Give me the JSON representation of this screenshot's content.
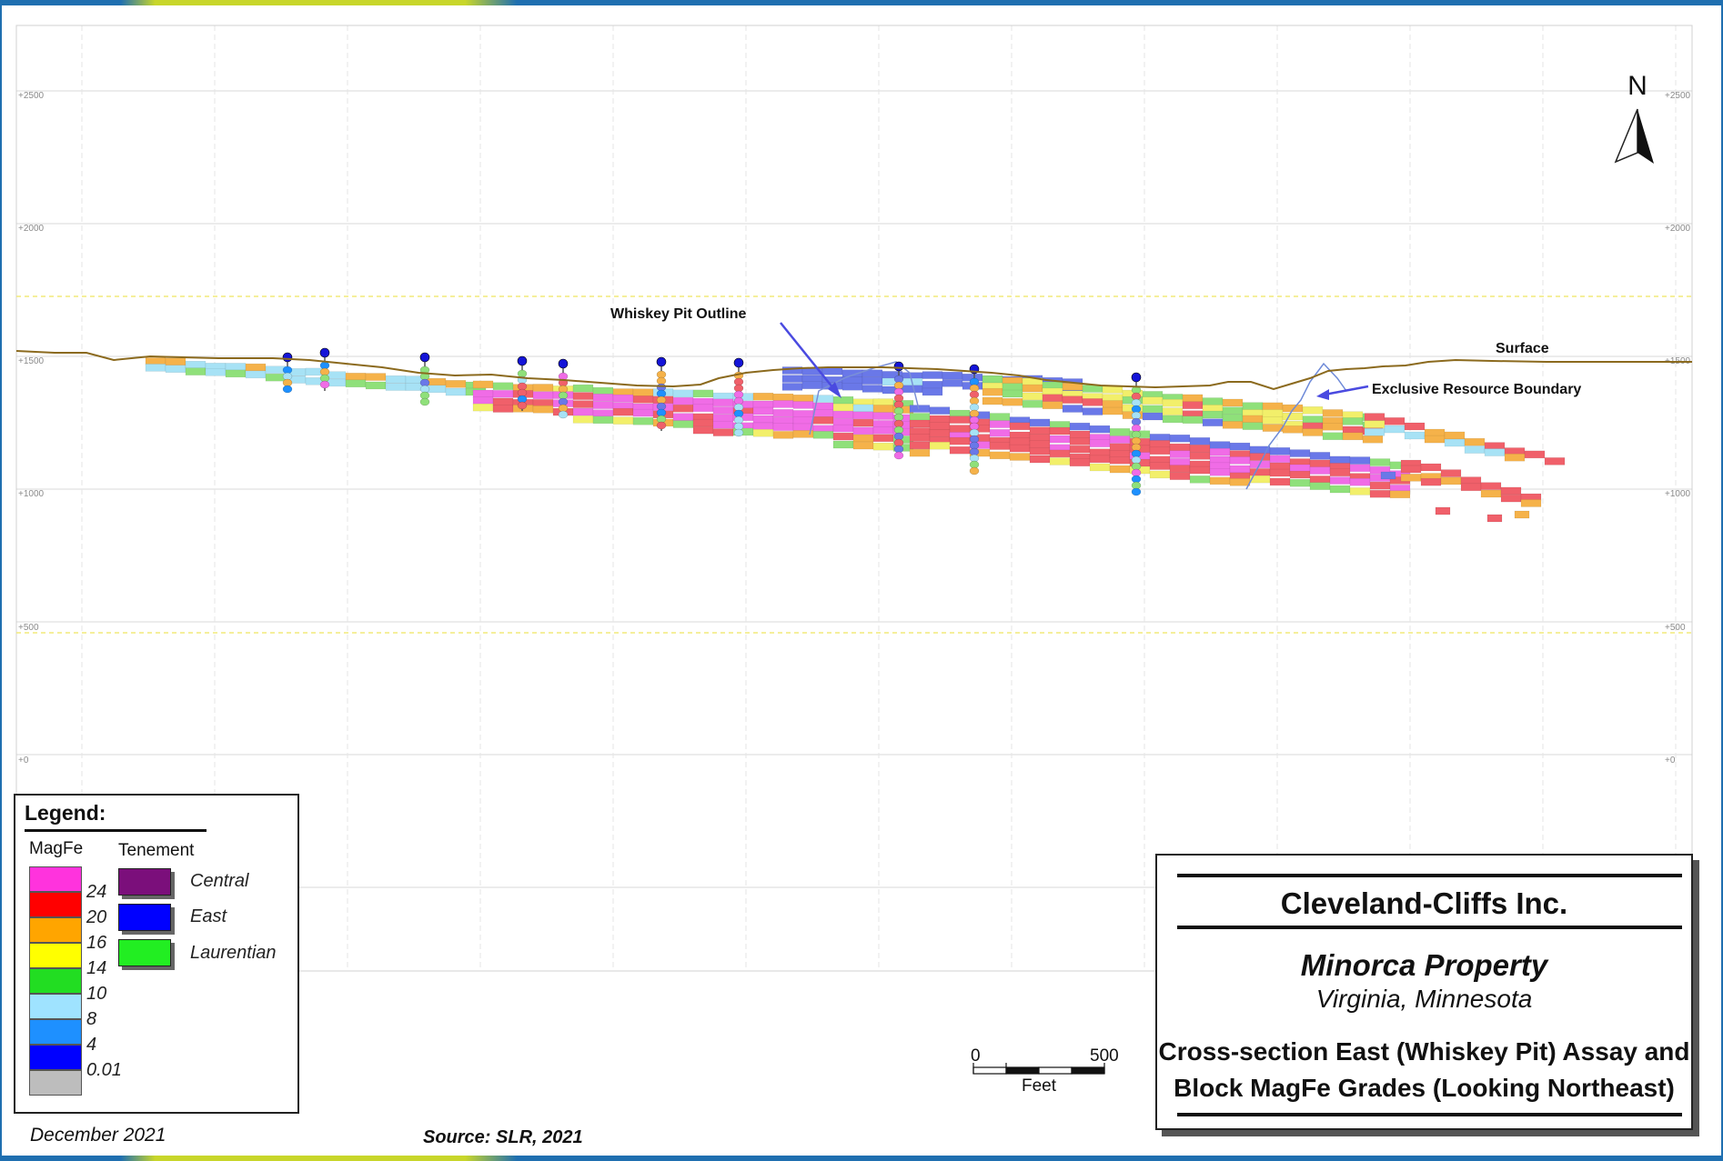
{
  "colors": {
    "frame_blue": "#1f6fb0",
    "accent_yellow": "#c8d62a",
    "surface_brown": "#8b6a1e",
    "pit_outline": "#7a8fd6",
    "arrow": "#4a4ae0",
    "block_magenta": "#f06ce6",
    "block_red": "#f0606a",
    "block_orange": "#f5b24a",
    "block_yellow": "#f2ef6a",
    "block_green": "#8fe07a",
    "block_lightblue": "#a7e2f5",
    "block_blue": "#6a78e8"
  },
  "elevation_labels": {
    "left": [
      "+2500",
      "+2000",
      "+1500",
      "+1000",
      "+500",
      "+0"
    ],
    "right": [
      "+2500",
      "+2000",
      "+1500",
      "+1000",
      "+500",
      "+0"
    ]
  },
  "north_arrow": {
    "label": "N",
    "icon": "north-arrow-icon"
  },
  "annotations": {
    "whiskey_pit": "Whiskey Pit Outline",
    "surface": "Surface",
    "boundary": "Exclusive Resource Boundary"
  },
  "legend": {
    "title": "Legend:",
    "magfe_header": "MagFe",
    "tenement_header": "Tenement",
    "grades": [
      {
        "color": "#ff33dd",
        "label": "24"
      },
      {
        "color": "#ff0000",
        "label": "20"
      },
      {
        "color": "#ffa500",
        "label": "16"
      },
      {
        "color": "#ffff00",
        "label": "14"
      },
      {
        "color": "#22dd22",
        "label": "10"
      },
      {
        "color": "#9fe3ff",
        "label": "8"
      },
      {
        "color": "#1e90ff",
        "label": "4"
      },
      {
        "color": "#0000ff",
        "label": "0.01"
      },
      {
        "color": "#bdbdbd",
        "label": ""
      }
    ],
    "tenements": [
      {
        "color": "#7b0f7b",
        "label": "Central"
      },
      {
        "color": "#0000ff",
        "label": "East"
      },
      {
        "color": "#22ee22",
        "label": "Laurentian"
      }
    ]
  },
  "footer": {
    "date": "December 2021",
    "source": "Source: SLR, 2021"
  },
  "scale_bar": {
    "start": "0",
    "end": "500",
    "unit": "Feet"
  },
  "title_block": {
    "company": "Cleveland-Cliffs Inc.",
    "property": "Minorca Property",
    "location": "Virginia, Minnesota",
    "title_line1": "Cross-section East (Whiskey Pit) Assay and",
    "title_line2": "Block MagFe Grades (Looking Northeast)"
  }
}
